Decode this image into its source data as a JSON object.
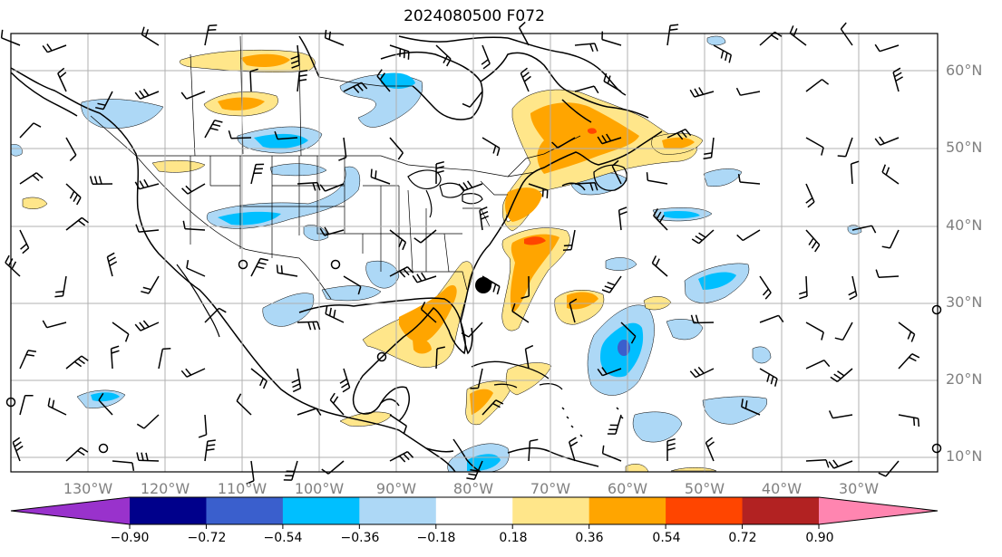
{
  "title": "2024080500 F072",
  "lat_labels": [
    "60°N",
    "50°N",
    "40°N",
    "30°N",
    "20°N",
    "10°N"
  ],
  "lon_labels": [
    "130°W",
    "120°W",
    "110°W",
    "100°W",
    "90°W",
    "80°W",
    "70°W",
    "60°W",
    "50°W",
    "40°W",
    "30°W"
  ],
  "colorbar": {
    "ticks": [
      "−0.90",
      "−0.72",
      "−0.54",
      "−0.36",
      "−0.18",
      "0.18",
      "0.36",
      "0.54",
      "0.72",
      "0.90"
    ],
    "colors": [
      "#9932cc",
      "#00008b",
      "#3a5fcd",
      "#00bfff",
      "#add8f6",
      "#ffffff",
      "#ffe68a",
      "#ffa500",
      "#ff4500",
      "#b22222",
      "#ff85b0"
    ]
  },
  "colors": {
    "grid": "#b0b0b0",
    "coast": "#000000",
    "barb": "#000000",
    "label": "#808080",
    "storm_marker": "#000000"
  },
  "features": {
    "storm_marker": "filled-circle",
    "calm_wind": "open-circle",
    "wind_barbs": "black"
  }
}
